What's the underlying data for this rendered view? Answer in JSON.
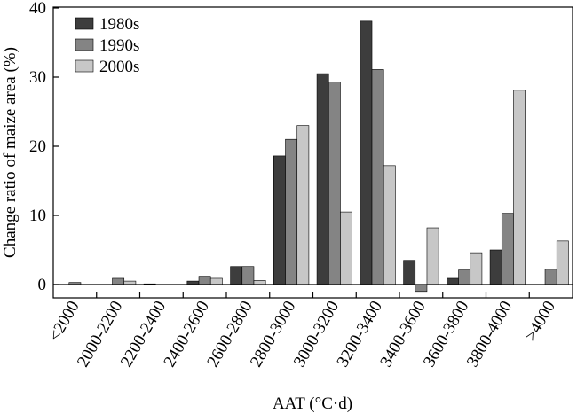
{
  "chart_data": {
    "type": "bar",
    "xlabel": "AAT (°C·d)",
    "ylabel": "Change ratio of maize area (%)",
    "ylim": [
      -2,
      40
    ],
    "yticks": [
      0,
      10,
      20,
      30,
      40
    ],
    "grid": false,
    "legend_position": "top-left",
    "categories": [
      "<2000",
      "2000-2200",
      "2200-2400",
      "2400-2600",
      "2600-2800",
      "2800-3000",
      "3000-3200",
      "3200-3400",
      "3400-3600",
      "3600-3800",
      "3800-4000",
      ">4000"
    ],
    "series": [
      {
        "name": "1980s",
        "color": "#3d3d3d",
        "values": [
          0,
          0,
          0.1,
          0.5,
          2.6,
          18.6,
          30.5,
          38.1,
          3.5,
          0.9,
          5.0,
          0
        ]
      },
      {
        "name": "1990s",
        "color": "#848484",
        "values": [
          0.3,
          0.9,
          0,
          1.2,
          2.6,
          21.0,
          29.3,
          31.1,
          -1.0,
          2.1,
          10.3,
          2.2
        ]
      },
      {
        "name": "2000s",
        "color": "#c7c7c7",
        "values": [
          0,
          0.5,
          0,
          0.9,
          0.6,
          23.0,
          10.5,
          17.2,
          8.2,
          4.6,
          28.1,
          6.3
        ]
      }
    ]
  }
}
